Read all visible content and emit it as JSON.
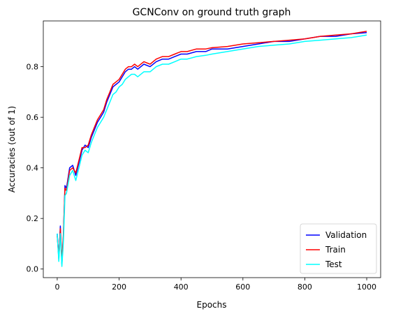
{
  "chart_data": {
    "type": "line",
    "title": "GCNConv on ground truth graph",
    "xlabel": "Epochs",
    "ylabel": "Accuracies (out of 1)",
    "xlim": [
      -45,
      1045
    ],
    "ylim": [
      -0.034,
      0.981
    ],
    "xticks": [
      0,
      200,
      400,
      600,
      800,
      1000
    ],
    "yticks": [
      0.0,
      0.2,
      0.4,
      0.6,
      0.8
    ],
    "grid": false,
    "legend_position": "bottom-right",
    "series": [
      {
        "name": "Validation",
        "color": "#0000ff",
        "x": [
          0,
          5,
          10,
          15,
          20,
          25,
          30,
          40,
          50,
          60,
          70,
          80,
          90,
          100,
          110,
          120,
          130,
          140,
          150,
          160,
          170,
          180,
          190,
          200,
          210,
          220,
          230,
          240,
          250,
          260,
          280,
          300,
          320,
          340,
          360,
          380,
          400,
          420,
          450,
          480,
          500,
          550,
          600,
          650,
          700,
          750,
          800,
          850,
          900,
          950,
          1000
        ],
        "y": [
          0.14,
          0.04,
          0.17,
          0.02,
          0.13,
          0.33,
          0.32,
          0.4,
          0.41,
          0.37,
          0.42,
          0.47,
          0.49,
          0.48,
          0.52,
          0.55,
          0.58,
          0.6,
          0.62,
          0.66,
          0.69,
          0.72,
          0.73,
          0.74,
          0.76,
          0.78,
          0.79,
          0.79,
          0.8,
          0.79,
          0.81,
          0.8,
          0.82,
          0.83,
          0.83,
          0.84,
          0.85,
          0.85,
          0.86,
          0.86,
          0.87,
          0.87,
          0.88,
          0.89,
          0.9,
          0.9,
          0.91,
          0.92,
          0.92,
          0.93,
          0.935
        ]
      },
      {
        "name": "Train",
        "color": "#ff0000",
        "x": [
          0,
          5,
          10,
          15,
          20,
          25,
          30,
          40,
          50,
          60,
          70,
          80,
          90,
          100,
          110,
          120,
          130,
          140,
          150,
          160,
          170,
          180,
          190,
          200,
          210,
          220,
          230,
          240,
          250,
          260,
          280,
          300,
          320,
          340,
          360,
          380,
          400,
          420,
          450,
          480,
          500,
          550,
          600,
          650,
          700,
          750,
          800,
          850,
          900,
          950,
          1000
        ],
        "y": [
          0.13,
          0.05,
          0.16,
          0.03,
          0.14,
          0.32,
          0.31,
          0.39,
          0.4,
          0.38,
          0.43,
          0.48,
          0.48,
          0.49,
          0.53,
          0.56,
          0.59,
          0.61,
          0.63,
          0.67,
          0.7,
          0.73,
          0.74,
          0.75,
          0.77,
          0.79,
          0.8,
          0.8,
          0.81,
          0.8,
          0.82,
          0.81,
          0.83,
          0.84,
          0.84,
          0.85,
          0.86,
          0.86,
          0.87,
          0.87,
          0.875,
          0.88,
          0.89,
          0.895,
          0.9,
          0.905,
          0.91,
          0.92,
          0.925,
          0.93,
          0.94
        ]
      },
      {
        "name": "Test",
        "color": "#00ffff",
        "x": [
          0,
          5,
          10,
          15,
          20,
          25,
          30,
          40,
          50,
          60,
          70,
          80,
          90,
          100,
          110,
          120,
          130,
          140,
          150,
          160,
          170,
          180,
          190,
          200,
          210,
          220,
          230,
          240,
          250,
          260,
          280,
          300,
          320,
          340,
          360,
          380,
          400,
          420,
          450,
          480,
          500,
          550,
          600,
          650,
          700,
          750,
          800,
          850,
          900,
          950,
          1000
        ],
        "y": [
          0.14,
          0.03,
          0.14,
          0.01,
          0.11,
          0.29,
          0.3,
          0.37,
          0.39,
          0.35,
          0.4,
          0.45,
          0.47,
          0.46,
          0.5,
          0.53,
          0.56,
          0.58,
          0.6,
          0.63,
          0.66,
          0.69,
          0.7,
          0.72,
          0.73,
          0.75,
          0.76,
          0.77,
          0.77,
          0.76,
          0.78,
          0.78,
          0.8,
          0.81,
          0.81,
          0.82,
          0.83,
          0.83,
          0.84,
          0.845,
          0.85,
          0.86,
          0.87,
          0.88,
          0.885,
          0.89,
          0.9,
          0.905,
          0.91,
          0.915,
          0.925
        ]
      }
    ]
  }
}
